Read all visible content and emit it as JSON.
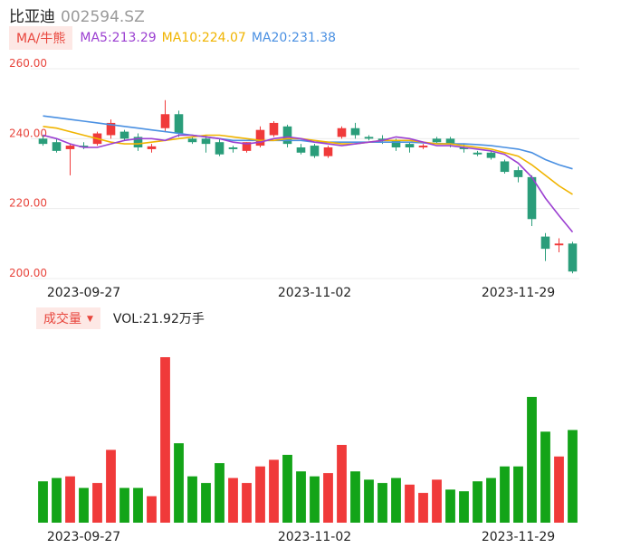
{
  "header": {
    "name": "比亚迪",
    "code": "002594.SZ"
  },
  "ma_legend": {
    "button_label": "MA/牛熊",
    "ma5": "MA5:213.29",
    "ma10": "MA10:224.07",
    "ma20": "MA20:231.38"
  },
  "volume_legend": {
    "button_label": "成交量",
    "value_text": "VOL:21.92万手"
  },
  "colors": {
    "up": "#f03a3a",
    "down": "#2a9d7a",
    "volume_down": "#13a418",
    "ma5": "#9b3fd1",
    "ma10": "#f0b400",
    "ma20": "#4a90e2",
    "grid": "#ececec",
    "price_label": "#e8453c"
  },
  "chart_data": [
    {
      "type": "candlestick",
      "title": "",
      "y_ticks": [
        "260.00",
        "240.00",
        "220.00",
        "200.00"
      ],
      "ylim": [
        200,
        260
      ],
      "x_tick_labels": [
        "2023-09-27",
        "2023-11-02",
        "2023-11-29"
      ],
      "x_tick_indices": [
        3,
        20,
        35
      ],
      "candles": [
        {
          "o": 240.0,
          "h": 241.0,
          "l": 238.0,
          "c": 238.5
        },
        {
          "o": 239.0,
          "h": 240.0,
          "l": 236.0,
          "c": 236.5
        },
        {
          "o": 237.0,
          "h": 238.5,
          "l": 229.5,
          "c": 238.0
        },
        {
          "o": 238.0,
          "h": 239.0,
          "l": 237.0,
          "c": 237.5
        },
        {
          "o": 238.5,
          "h": 242.0,
          "l": 238.0,
          "c": 241.5
        },
        {
          "o": 241.0,
          "h": 245.5,
          "l": 240.0,
          "c": 244.5
        },
        {
          "o": 242.0,
          "h": 242.5,
          "l": 239.5,
          "c": 240.0
        },
        {
          "o": 240.5,
          "h": 241.5,
          "l": 236.5,
          "c": 237.5
        },
        {
          "o": 237.0,
          "h": 238.5,
          "l": 236.0,
          "c": 237.8
        },
        {
          "o": 243.0,
          "h": 251.0,
          "l": 242.0,
          "c": 247.0
        },
        {
          "o": 247.0,
          "h": 248.0,
          "l": 240.5,
          "c": 241.5
        },
        {
          "o": 240.0,
          "h": 240.5,
          "l": 238.5,
          "c": 239.0
        },
        {
          "o": 240.0,
          "h": 241.0,
          "l": 236.0,
          "c": 238.5
        },
        {
          "o": 239.0,
          "h": 240.0,
          "l": 235.0,
          "c": 235.5
        },
        {
          "o": 237.5,
          "h": 238.0,
          "l": 236.0,
          "c": 237.0
        },
        {
          "o": 236.5,
          "h": 239.0,
          "l": 236.0,
          "c": 239.0
        },
        {
          "o": 238.0,
          "h": 243.5,
          "l": 237.5,
          "c": 242.5
        },
        {
          "o": 241.0,
          "h": 245.0,
          "l": 240.5,
          "c": 244.5
        },
        {
          "o": 243.5,
          "h": 244.0,
          "l": 237.5,
          "c": 238.5
        },
        {
          "o": 237.5,
          "h": 238.5,
          "l": 235.5,
          "c": 236.0
        },
        {
          "o": 238.0,
          "h": 238.5,
          "l": 234.5,
          "c": 235.0
        },
        {
          "o": 235.0,
          "h": 238.0,
          "l": 234.5,
          "c": 237.5
        },
        {
          "o": 240.5,
          "h": 243.5,
          "l": 240.0,
          "c": 243.0
        },
        {
          "o": 243.0,
          "h": 244.5,
          "l": 240.0,
          "c": 241.0
        },
        {
          "o": 240.5,
          "h": 241.0,
          "l": 239.5,
          "c": 240.0
        },
        {
          "o": 240.0,
          "h": 241.0,
          "l": 238.5,
          "c": 239.5
        },
        {
          "o": 239.5,
          "h": 240.0,
          "l": 236.5,
          "c": 237.5
        },
        {
          "o": 238.5,
          "h": 239.0,
          "l": 236.0,
          "c": 237.5
        },
        {
          "o": 237.5,
          "h": 238.5,
          "l": 237.0,
          "c": 238.0
        },
        {
          "o": 240.0,
          "h": 240.5,
          "l": 238.5,
          "c": 239.0
        },
        {
          "o": 240.0,
          "h": 240.5,
          "l": 237.5,
          "c": 238.5
        },
        {
          "o": 237.5,
          "h": 238.5,
          "l": 236.0,
          "c": 237.0
        },
        {
          "o": 236.0,
          "h": 236.5,
          "l": 235.0,
          "c": 235.5
        },
        {
          "o": 236.0,
          "h": 236.5,
          "l": 234.0,
          "c": 234.5
        },
        {
          "o": 233.5,
          "h": 234.0,
          "l": 230.0,
          "c": 230.5
        },
        {
          "o": 231.0,
          "h": 232.0,
          "l": 227.5,
          "c": 229.0
        },
        {
          "o": 229.0,
          "h": 229.5,
          "l": 215.0,
          "c": 217.0
        },
        {
          "o": 212.0,
          "h": 213.0,
          "l": 205.0,
          "c": 208.5
        },
        {
          "o": 209.5,
          "h": 211.5,
          "l": 207.5,
          "c": 210.0
        },
        {
          "o": 210.0,
          "h": 210.5,
          "l": 201.5,
          "c": 202.0
        }
      ],
      "ma5": [
        241.0,
        240.0,
        238.5,
        237.5,
        237.5,
        238.5,
        239.5,
        240.0,
        240.0,
        239.5,
        241.0,
        241.0,
        240.5,
        240.0,
        239.0,
        238.5,
        239.0,
        240.0,
        240.5,
        240.0,
        239.0,
        238.5,
        238.0,
        238.5,
        239.0,
        239.5,
        240.5,
        240.0,
        239.0,
        238.0,
        238.0,
        237.5,
        237.0,
        236.5,
        235.5,
        233.0,
        229.0,
        223.0,
        218.0,
        213.3
      ],
      "ma10": [
        243.5,
        243.0,
        242.0,
        241.0,
        240.0,
        239.0,
        238.5,
        238.5,
        239.0,
        239.5,
        240.0,
        240.5,
        241.0,
        241.0,
        240.5,
        240.0,
        239.5,
        239.5,
        240.0,
        240.0,
        239.5,
        239.0,
        238.5,
        238.5,
        239.0,
        239.5,
        239.5,
        239.5,
        239.0,
        238.5,
        238.5,
        238.0,
        237.5,
        237.0,
        236.0,
        235.0,
        232.5,
        229.5,
        226.5,
        224.07
      ],
      "ma20": [
        246.5,
        246.0,
        245.5,
        245.0,
        244.5,
        244.0,
        243.5,
        243.0,
        242.5,
        242.0,
        241.5,
        241.0,
        240.5,
        240.0,
        239.5,
        239.5,
        239.5,
        239.5,
        239.5,
        239.5,
        239.0,
        239.0,
        239.0,
        239.0,
        239.0,
        239.0,
        239.0,
        239.0,
        238.8,
        238.6,
        238.5,
        238.5,
        238.3,
        238.0,
        237.5,
        237.0,
        236.0,
        234.0,
        232.5,
        231.38
      ],
      "volume": [
        25,
        27,
        28,
        21,
        24,
        44,
        21,
        21,
        16,
        100,
        48,
        28,
        24,
        36,
        27,
        24,
        34,
        38,
        41,
        31,
        28,
        30,
        47,
        31,
        26,
        24,
        27,
        23,
        18,
        26,
        20,
        19,
        25,
        27,
        34,
        34,
        76,
        55,
        40,
        56
      ],
      "volume_dir": [
        "d",
        "d",
        "u",
        "d",
        "u",
        "u",
        "d",
        "d",
        "u",
        "u",
        "d",
        "d",
        "d",
        "d",
        "u",
        "u",
        "u",
        "u",
        "d",
        "d",
        "d",
        "u",
        "u",
        "d",
        "d",
        "d",
        "d",
        "u",
        "u",
        "u",
        "d",
        "d",
        "d",
        "d",
        "d",
        "d",
        "d",
        "d",
        "u",
        "d"
      ]
    }
  ]
}
